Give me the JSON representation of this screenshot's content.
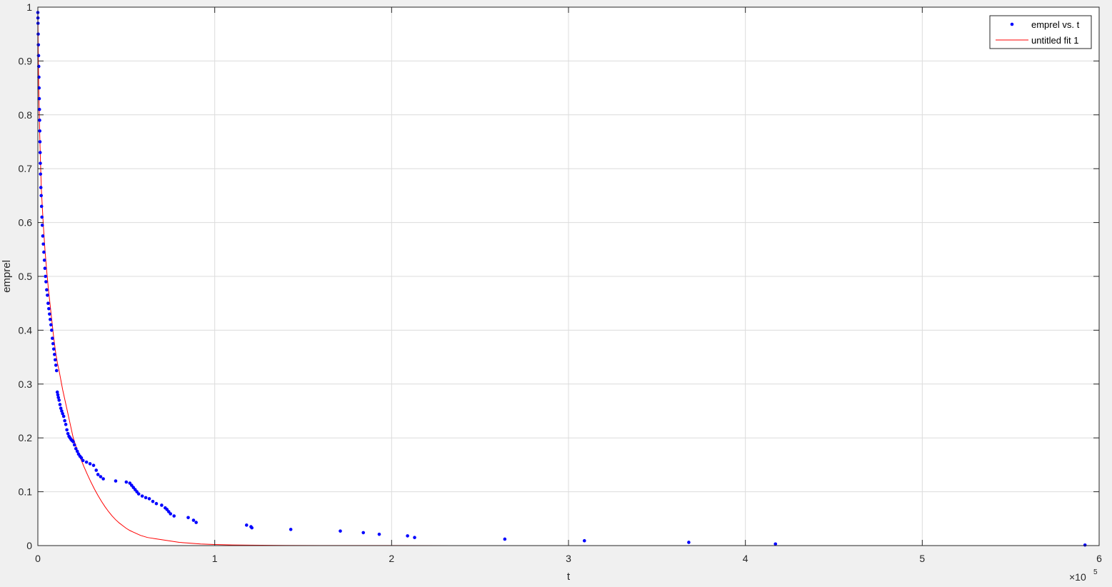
{
  "chart_data": {
    "type": "scatter",
    "title": "",
    "xlabel": "t",
    "ylabel": "emprel",
    "x_exponent_label": "×10",
    "x_exponent_power": "5",
    "xlim": [
      0,
      600000
    ],
    "ylim": [
      0,
      1
    ],
    "x_ticks": [
      0,
      100000,
      200000,
      300000,
      400000,
      500000,
      600000
    ],
    "x_tick_labels": [
      "0",
      "1",
      "2",
      "3",
      "4",
      "5",
      "6"
    ],
    "y_ticks": [
      0,
      0.1,
      0.2,
      0.3,
      0.4,
      0.5,
      0.6,
      0.7,
      0.8,
      0.9,
      1
    ],
    "y_tick_labels": [
      "0",
      "0.1",
      "0.2",
      "0.3",
      "0.4",
      "0.5",
      "0.6",
      "0.7",
      "0.8",
      "0.9",
      "1"
    ],
    "grid": true,
    "legend_position": "top-right",
    "colors": {
      "points": "#0000ff",
      "fit": "#ff0000",
      "grid": "#dcdcdc",
      "axes": "#262626"
    },
    "series": [
      {
        "name": "emprel vs. t",
        "style": "points",
        "x": [
          0,
          50,
          100,
          200,
          300,
          400,
          500,
          600,
          700,
          800,
          900,
          1000,
          1100,
          1200,
          1300,
          1400,
          1500,
          1700,
          1900,
          2100,
          2300,
          2500,
          2800,
          3100,
          3400,
          3700,
          4000,
          4300,
          4600,
          5000,
          5400,
          5800,
          6200,
          6600,
          7000,
          7400,
          7800,
          8200,
          8600,
          9000,
          9400,
          9800,
          10200,
          10600,
          11000,
          11300,
          11600,
          12000,
          12500,
          13000,
          13500,
          14000,
          14600,
          15200,
          15800,
          16400,
          17000,
          17600,
          18200,
          18800,
          19400,
          20000,
          20700,
          21500,
          22300,
          23000,
          23800,
          24600,
          25500,
          27500,
          29500,
          31500,
          33000,
          34000,
          35500,
          37000,
          44000,
          50000,
          52000,
          53000,
          54000,
          55000,
          56000,
          57000,
          59000,
          61000,
          63000,
          65000,
          67000,
          70000,
          72000,
          73000,
          74000,
          75000,
          77000,
          85000,
          88000,
          89500,
          118000,
          120500,
          121000,
          143000,
          171000,
          184000,
          193000,
          209000,
          213000,
          264000,
          309000,
          368000,
          417000,
          592000
        ],
        "y": [
          0.99,
          0.98,
          0.97,
          0.95,
          0.93,
          0.91,
          0.89,
          0.87,
          0.85,
          0.83,
          0.81,
          0.79,
          0.77,
          0.75,
          0.73,
          0.71,
          0.69,
          0.665,
          0.65,
          0.63,
          0.61,
          0.595,
          0.575,
          0.56,
          0.545,
          0.53,
          0.515,
          0.5,
          0.49,
          0.475,
          0.465,
          0.45,
          0.44,
          0.43,
          0.42,
          0.41,
          0.4,
          0.385,
          0.375,
          0.365,
          0.355,
          0.345,
          0.335,
          0.325,
          0.285,
          0.28,
          0.275,
          0.27,
          0.262,
          0.255,
          0.25,
          0.245,
          0.24,
          0.232,
          0.225,
          0.215,
          0.208,
          0.203,
          0.2,
          0.197,
          0.195,
          0.193,
          0.187,
          0.18,
          0.175,
          0.17,
          0.166,
          0.163,
          0.158,
          0.155,
          0.152,
          0.149,
          0.14,
          0.132,
          0.128,
          0.124,
          0.12,
          0.118,
          0.116,
          0.112,
          0.108,
          0.104,
          0.1,
          0.096,
          0.092,
          0.089,
          0.087,
          0.082,
          0.078,
          0.075,
          0.07,
          0.067,
          0.063,
          0.059,
          0.055,
          0.052,
          0.047,
          0.043,
          0.038,
          0.035,
          0.033,
          0.03,
          0.027,
          0.024,
          0.021,
          0.018,
          0.015,
          0.012,
          0.009,
          0.006,
          0.003,
          0.001
        ]
      },
      {
        "name": "untitled fit 1",
        "style": "line",
        "x": [
          0,
          200,
          500,
          1000,
          1500,
          2000,
          3000,
          4000,
          5000,
          6000,
          7000,
          8000,
          9000,
          10000,
          11000,
          12000,
          14000,
          16000,
          18000,
          20000,
          22000,
          24000,
          26000,
          28000,
          30000,
          32000,
          34000,
          36000,
          38000,
          40000,
          42000,
          44000,
          46000,
          48000,
          50000,
          52000,
          54000,
          56000,
          58000,
          60000,
          62000,
          64000,
          66000,
          68000,
          70000,
          72000,
          74000,
          76000,
          78000,
          80000,
          84000,
          88000,
          92000,
          96000,
          100000,
          110000,
          120000,
          140000,
          160000,
          200000,
          300000,
          400000,
          500000,
          590000
        ],
        "y": [
          1.0,
          0.92,
          0.85,
          0.77,
          0.71,
          0.66,
          0.6,
          0.55,
          0.51,
          0.475,
          0.445,
          0.415,
          0.385,
          0.36,
          0.34,
          0.325,
          0.29,
          0.26,
          0.23,
          0.2,
          0.18,
          0.163,
          0.147,
          0.132,
          0.118,
          0.105,
          0.093,
          0.082,
          0.072,
          0.063,
          0.055,
          0.048,
          0.042,
          0.037,
          0.032,
          0.028,
          0.025,
          0.022,
          0.019,
          0.017,
          0.015,
          0.014,
          0.013,
          0.012,
          0.011,
          0.01,
          0.009,
          0.008,
          0.007,
          0.006,
          0.005,
          0.004,
          0.003,
          0.0025,
          0.002,
          0.0012,
          0.0008,
          0.0004,
          0.0002,
          0.0001,
          0,
          0,
          0,
          0
        ]
      }
    ]
  }
}
